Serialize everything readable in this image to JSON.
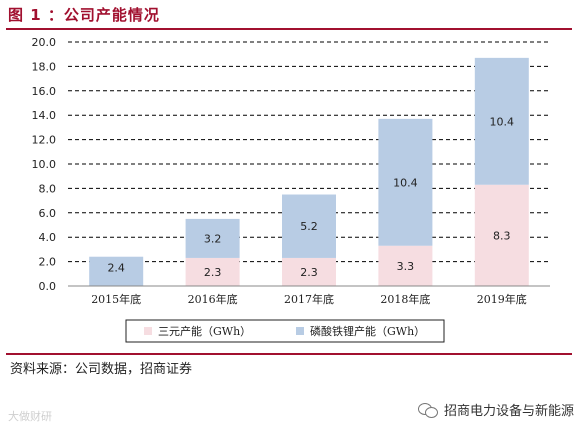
{
  "figure": {
    "title": "图 1 ：公司产能情况",
    "source": "资料来源：公司数据，招商证券"
  },
  "watermarks": {
    "left": "大做财研",
    "right": "招商电力设备与新能源",
    "right_icon": "wechat-icon"
  },
  "colors": {
    "accent": "#a1102f",
    "series_ternary": "#f6dde1",
    "series_lfp": "#b8cce4"
  },
  "chart_data": {
    "type": "bar",
    "stacked": true,
    "categories": [
      "2015年底",
      "2016年底",
      "2017年底",
      "2018年底",
      "2019年底"
    ],
    "series": [
      {
        "name": "三元产能（GWh）",
        "values": [
          0.0,
          2.3,
          2.3,
          3.3,
          8.3
        ],
        "labels": [
          "0.0",
          "2.3",
          "2.3",
          "3.3",
          "8.3"
        ]
      },
      {
        "name": "磷酸铁锂产能（GWh）",
        "values": [
          2.4,
          3.2,
          5.2,
          10.4,
          10.4
        ],
        "labels": [
          "2.4",
          "3.2",
          "5.2",
          "10.4",
          "10.4"
        ]
      }
    ],
    "y_ticks": [
      "0.0",
      "2.0",
      "4.0",
      "6.0",
      "8.0",
      "10.0",
      "12.0",
      "14.0",
      "16.0",
      "18.0",
      "20.0"
    ],
    "ylim": [
      0,
      20
    ],
    "grid": true,
    "legend_position": "bottom"
  }
}
